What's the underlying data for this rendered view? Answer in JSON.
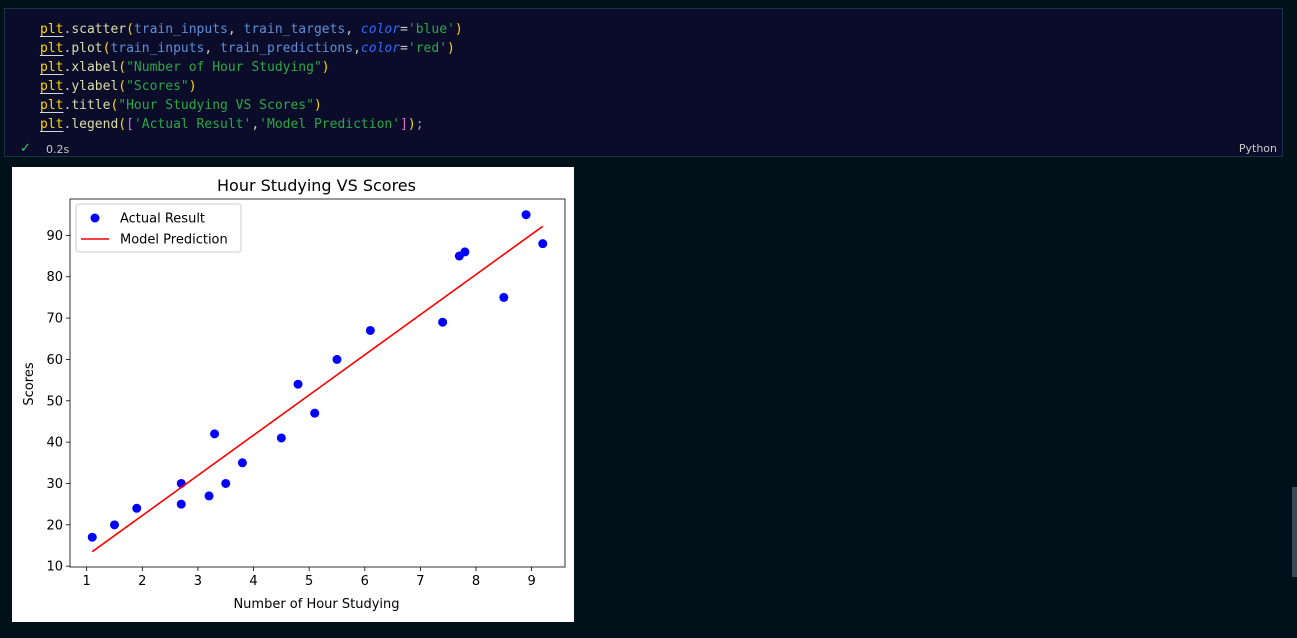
{
  "cell": {
    "code_lines": [
      [
        [
          "t-obj",
          "plt"
        ],
        [
          "t-punc",
          "."
        ],
        [
          "t-fn",
          "scatter"
        ],
        [
          "t-par",
          "("
        ],
        [
          "t-arg",
          "train_inputs"
        ],
        [
          "t-punc",
          ", "
        ],
        [
          "t-arg",
          "train_targets"
        ],
        [
          "t-punc",
          ", "
        ],
        [
          "t-kw",
          "color"
        ],
        [
          "t-punc",
          "="
        ],
        [
          "t-str",
          "'blue'"
        ],
        [
          "t-par",
          ")"
        ]
      ],
      [
        [
          "t-obj",
          "plt"
        ],
        [
          "t-punc",
          "."
        ],
        [
          "t-fn",
          "plot"
        ],
        [
          "t-par",
          "("
        ],
        [
          "t-arg",
          "train_inputs"
        ],
        [
          "t-punc",
          ", "
        ],
        [
          "t-arg",
          "train_predictions"
        ],
        [
          "t-punc",
          ","
        ],
        [
          "t-kw",
          "color"
        ],
        [
          "t-punc",
          "="
        ],
        [
          "t-str",
          "'red'"
        ],
        [
          "t-par",
          ")"
        ]
      ],
      [
        [
          "t-obj",
          "plt"
        ],
        [
          "t-punc",
          "."
        ],
        [
          "t-fn",
          "xlabel"
        ],
        [
          "t-par",
          "("
        ],
        [
          "t-str",
          "\"Number of Hour Studying\""
        ],
        [
          "t-par",
          ")"
        ]
      ],
      [
        [
          "t-obj",
          "plt"
        ],
        [
          "t-punc",
          "."
        ],
        [
          "t-fn",
          "ylabel"
        ],
        [
          "t-par",
          "("
        ],
        [
          "t-str",
          "\"Scores\""
        ],
        [
          "t-par",
          ")"
        ]
      ],
      [
        [
          "t-obj",
          "plt"
        ],
        [
          "t-punc",
          "."
        ],
        [
          "t-fn",
          "title"
        ],
        [
          "t-par",
          "("
        ],
        [
          "t-str",
          "\"Hour Studying VS Scores\""
        ],
        [
          "t-par",
          ")"
        ]
      ],
      [
        [
          "t-obj",
          "plt"
        ],
        [
          "t-punc",
          "."
        ],
        [
          "t-fn",
          "legend"
        ],
        [
          "t-par",
          "("
        ],
        [
          "t-br",
          "["
        ],
        [
          "t-str",
          "'Actual Result'"
        ],
        [
          "t-punc",
          ","
        ],
        [
          "t-str",
          "'Model Prediction'"
        ],
        [
          "t-br",
          "]"
        ],
        [
          "t-par",
          ")"
        ],
        [
          "t-semi",
          ";"
        ]
      ]
    ],
    "status_icon": "check-icon",
    "exec_time": "0.2s",
    "language": "Python"
  },
  "chart_data": {
    "type": "scatter",
    "title": "Hour Studying VS Scores",
    "xlabel": "Number of Hour Studying",
    "ylabel": "Scores",
    "xticks": [
      1,
      2,
      3,
      4,
      5,
      6,
      7,
      8,
      9
    ],
    "yticks": [
      10,
      20,
      30,
      40,
      50,
      60,
      70,
      80,
      90
    ],
    "xlim": [
      0.7,
      9.6
    ],
    "ylim": [
      9.8,
      98.8
    ],
    "legend_position": "top-left",
    "series": [
      {
        "name": "Actual Result",
        "kind": "scatter",
        "color": "#0000ff",
        "points": [
          [
            1.1,
            17
          ],
          [
            1.5,
            20
          ],
          [
            1.9,
            24
          ],
          [
            2.7,
            25
          ],
          [
            2.7,
            30
          ],
          [
            3.2,
            27
          ],
          [
            3.3,
            42
          ],
          [
            3.5,
            30
          ],
          [
            3.8,
            35
          ],
          [
            4.5,
            41
          ],
          [
            4.8,
            54
          ],
          [
            5.1,
            47
          ],
          [
            5.5,
            60
          ],
          [
            6.1,
            67
          ],
          [
            7.4,
            69
          ],
          [
            7.7,
            85
          ],
          [
            7.8,
            86
          ],
          [
            8.5,
            75
          ],
          [
            8.9,
            95
          ],
          [
            9.2,
            88
          ]
        ]
      },
      {
        "name": "Model Prediction",
        "kind": "line",
        "color": "#ff0000",
        "points": [
          [
            1.1,
            13.5
          ],
          [
            9.2,
            92.2
          ]
        ]
      }
    ]
  }
}
